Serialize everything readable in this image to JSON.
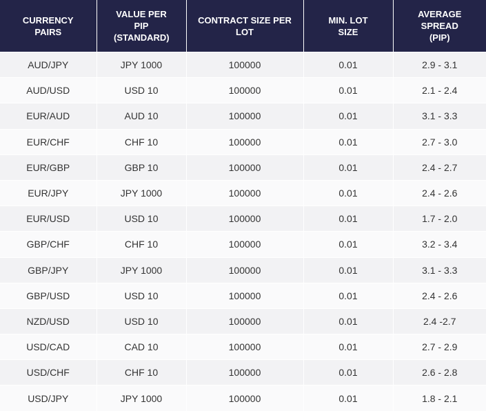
{
  "table": {
    "headers": [
      "CURRENCY PAIRS",
      "VALUE PER PIP (STANDARD)",
      "CONTRACT SIZE PER LOT",
      "MIN. LOT SIZE",
      "AVERAGE SPREAD (PIP)"
    ],
    "rows": [
      [
        "AUD/JPY",
        "JPY 1000",
        "100000",
        "0.01",
        "2.9 - 3.1"
      ],
      [
        "AUD/USD",
        "USD 10",
        "100000",
        "0.01",
        "2.1 - 2.4"
      ],
      [
        "EUR/AUD",
        "AUD 10",
        "100000",
        "0.01",
        "3.1 - 3.3"
      ],
      [
        "EUR/CHF",
        "CHF 10",
        "100000",
        "0.01",
        "2.7 - 3.0"
      ],
      [
        "EUR/GBP",
        "GBP 10",
        "100000",
        "0.01",
        "2.4 - 2.7"
      ],
      [
        "EUR/JPY",
        "JPY 1000",
        "100000",
        "0.01",
        "2.4 - 2.6"
      ],
      [
        "EUR/USD",
        "USD 10",
        "100000",
        "0.01",
        "1.7 - 2.0"
      ],
      [
        "GBP/CHF",
        "CHF 10",
        "100000",
        "0.01",
        "3.2 - 3.4"
      ],
      [
        "GBP/JPY",
        "JPY 1000",
        "100000",
        "0.01",
        "3.1 - 3.3"
      ],
      [
        "GBP/USD",
        "USD 10",
        "100000",
        "0.01",
        "2.4 - 2.6"
      ],
      [
        "NZD/USD",
        "USD 10",
        "100000",
        "0.01",
        "2.4 -2.7"
      ],
      [
        "USD/CAD",
        "CAD 10",
        "100000",
        "0.01",
        "2.7 - 2.9"
      ],
      [
        "USD/CHF",
        "CHF 10",
        "100000",
        "0.01",
        "2.6 - 2.8"
      ],
      [
        "USD/JPY",
        "JPY 1000",
        "100000",
        "0.01",
        "1.8 - 2.1"
      ]
    ]
  }
}
